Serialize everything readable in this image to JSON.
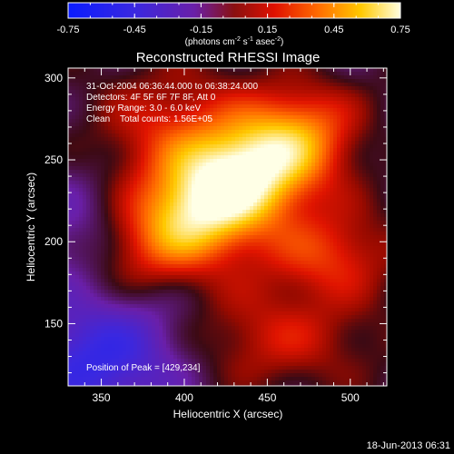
{
  "colorbar": {
    "ticks": [
      "-0.75",
      "-0.45",
      "-0.15",
      "0.15",
      "0.45",
      "0.75"
    ],
    "range": [
      -0.75,
      0.75
    ],
    "unit_label_parts": [
      "(photons cm",
      "-2",
      " s",
      "-1",
      " asec",
      "-2",
      ")"
    ]
  },
  "chart_data": {
    "type": "heatmap",
    "title": "Reconstructed RHESSI Image",
    "xlabel": "Heliocentric X (arcsec)",
    "ylabel": "Heliocentric Y (arcsec)",
    "xlim": [
      330,
      522
    ],
    "ylim": [
      112,
      306
    ],
    "xticks": [
      350,
      400,
      450,
      500
    ],
    "yticks": [
      150,
      200,
      250,
      300
    ],
    "colormap": "rhessi-blue-purple-red-yellow-white",
    "value_range": [
      -0.75,
      0.75
    ],
    "peak": {
      "x": 429,
      "y": 234,
      "value": 0.75
    },
    "info_lines": [
      "31-Oct-2004 06:36:44.000 to 06:38:24.000",
      "Detectors: 4F 5F 6F 7F 8F, Att 0",
      "Energy Range: 3.0 - 6.0 keV",
      "Clean    Total counts: 1.56E+05"
    ],
    "peak_label": "Position of Peak = [429,234]"
  },
  "timestamp": "18-Jun-2013 06:31"
}
